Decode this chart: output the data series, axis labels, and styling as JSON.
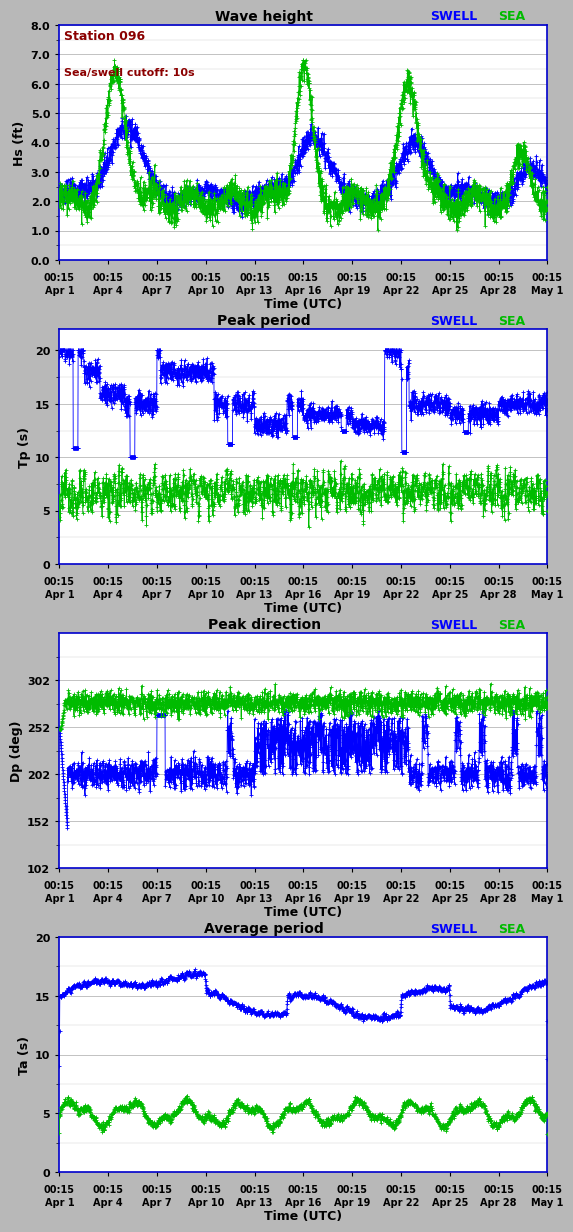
{
  "station_label": "Station 096",
  "cutoff_label": "Sea/swell cutoff: 10s",
  "swell_color": "#0000ff",
  "sea_color": "#00bb00",
  "bg_color": "#b8b8b8",
  "plot_bg_color": "#ffffff",
  "border_color": "#0000cc",
  "panels": [
    {
      "title": "Wave height",
      "ylabel": "Hs (ft)",
      "ylim": [
        0.0,
        8.0
      ],
      "yticks": [
        0.0,
        1.0,
        2.0,
        3.0,
        4.0,
        5.0,
        6.0,
        7.0,
        8.0
      ],
      "ytick_labels": [
        "0.0",
        "1.0",
        "2.0",
        "3.0",
        "4.0",
        "5.0",
        "6.0",
        "7.0",
        "8.0"
      ],
      "minor_yticks": [
        0.5,
        1.5,
        2.5,
        3.5,
        4.5,
        5.5,
        6.5,
        7.5
      ],
      "show_station": true
    },
    {
      "title": "Peak period",
      "ylabel": "Tp (s)",
      "ylim": [
        0,
        22
      ],
      "yticks": [
        0,
        5,
        10,
        15,
        20
      ],
      "ytick_labels": [
        "0",
        "5",
        "10",
        "15",
        "20"
      ],
      "minor_yticks": [
        2.5,
        7.5,
        12.5,
        17.5
      ],
      "show_station": false
    },
    {
      "title": "Peak direction",
      "ylabel": "Dp (deg)",
      "ylim": [
        102,
        352
      ],
      "yticks": [
        102,
        152,
        202,
        252,
        302
      ],
      "ytick_labels": [
        "102",
        "152",
        "202",
        "252",
        "302"
      ],
      "minor_yticks": [
        127,
        177,
        227,
        277,
        327
      ],
      "show_station": false
    },
    {
      "title": "Average period",
      "ylabel": "Ta (s)",
      "ylim": [
        0,
        20
      ],
      "yticks": [
        0,
        5,
        10,
        15,
        20
      ],
      "ytick_labels": [
        "0",
        "5",
        "10",
        "15",
        "20"
      ],
      "minor_yticks": [
        2.5,
        7.5,
        12.5,
        17.5
      ],
      "show_station": false
    }
  ],
  "xtick_positions": [
    0,
    3,
    6,
    9,
    12,
    15,
    18,
    21,
    24,
    27,
    30
  ],
  "xtick_line1": [
    "00:15",
    "00:15",
    "00:15",
    "00:15",
    "00:15",
    "00:15",
    "00:15",
    "00:15",
    "00:15",
    "00:15",
    "00:15"
  ],
  "xtick_line2": [
    "Apr 1",
    "Apr 4",
    "Apr 7",
    "Apr 10",
    "Apr 13",
    "Apr 16",
    "Apr 19",
    "Apr 22",
    "Apr 25",
    "Apr 28",
    "May 1"
  ],
  "xlabel": "Time (UTC)"
}
